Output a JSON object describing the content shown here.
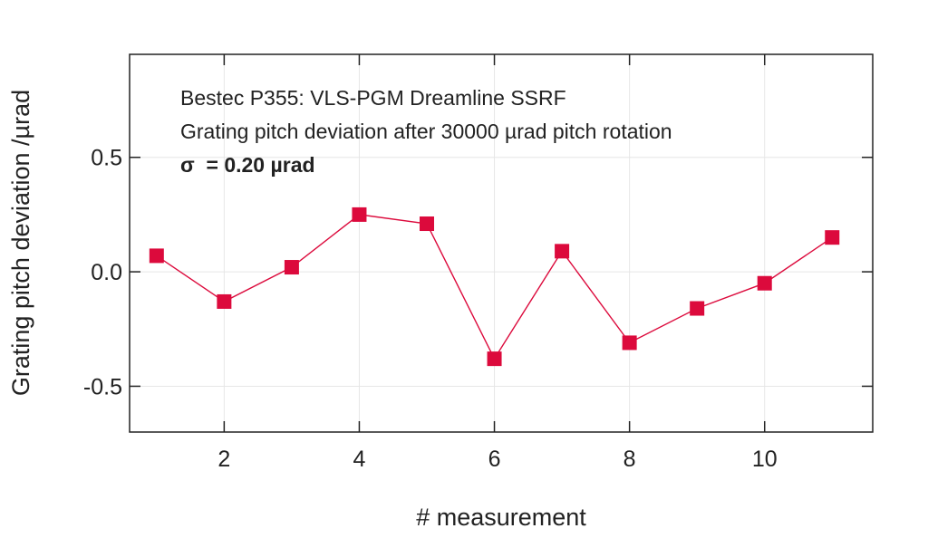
{
  "chart_data": {
    "type": "line",
    "title": "",
    "xlabel": "# measurement",
    "ylabel": "Grating pitch deviation /µrad",
    "x": [
      1,
      2,
      3,
      4,
      5,
      6,
      7,
      8,
      9,
      10,
      11
    ],
    "series": [
      {
        "values": [
          0.07,
          -0.13,
          0.02,
          0.25,
          0.21,
          -0.38,
          0.09,
          -0.31,
          -0.16,
          -0.05,
          0.15
        ],
        "color": "#dc0a3c",
        "marker": "square"
      }
    ],
    "xlim": [
      0.6,
      11.6
    ],
    "ylim": [
      -0.7,
      0.95
    ],
    "xticks": [
      2,
      4,
      6,
      8,
      10
    ],
    "xtick_labels": [
      "2",
      "4",
      "6",
      "8",
      "10"
    ],
    "yticks": [
      -0.5,
      0.0,
      0.5
    ],
    "ytick_labels": [
      "-0.5",
      "0.0",
      "0.5"
    ],
    "grid": true,
    "annotations": [
      "Bestec P355: VLS-PGM Dreamline SSRF",
      "Grating pitch deviation after 30000 µrad pitch rotation",
      "σ  = 0.20 µrad"
    ]
  }
}
